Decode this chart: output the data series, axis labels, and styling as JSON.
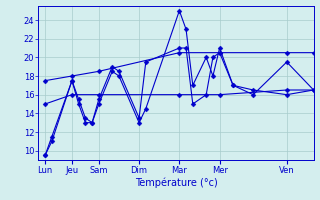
{
  "background_color": "#d4eeee",
  "grid_color": "#a8cccc",
  "line_color": "#0000cc",
  "marker": "D",
  "marker_size": 2.5,
  "xlabel": "Température (°c)",
  "ylim": [
    9,
    25.5
  ],
  "yticks": [
    10,
    12,
    14,
    16,
    18,
    20,
    22,
    24
  ],
  "day_labels": [
    "Lun",
    "Jeu",
    "Sam",
    "Dim",
    "Mar",
    "Mer",
    "Ven"
  ],
  "day_positions": [
    0,
    20,
    40,
    70,
    100,
    130,
    180
  ],
  "xlim": [
    -5,
    200
  ],
  "series": [
    {
      "x": [
        0,
        5,
        20,
        25,
        30,
        35,
        40,
        50,
        55,
        70,
        75,
        100,
        105,
        110,
        120,
        125,
        130,
        140,
        155,
        180,
        200
      ],
      "y": [
        9.5,
        11,
        17.5,
        15,
        13,
        13,
        15,
        18.5,
        18,
        13,
        14.5,
        25,
        23,
        17,
        20,
        18,
        21,
        17,
        16,
        19.5,
        16.5
      ]
    },
    {
      "x": [
        0,
        5,
        20,
        25,
        30,
        35,
        40,
        50,
        55,
        70,
        75,
        100,
        105,
        110,
        120,
        125,
        130,
        140,
        155,
        180,
        200
      ],
      "y": [
        9.5,
        11.5,
        17.5,
        15.5,
        13.5,
        13,
        15.5,
        19,
        18.5,
        13.5,
        19.5,
        21,
        21,
        15,
        16,
        20,
        20.5,
        17,
        16.5,
        16,
        16.5
      ]
    },
    {
      "x": [
        0,
        20,
        40,
        100,
        130,
        180,
        200
      ],
      "y": [
        17.5,
        18,
        18.5,
        20.5,
        20.5,
        20.5,
        20.5
      ]
    },
    {
      "x": [
        0,
        20,
        40,
        100,
        130,
        180,
        200
      ],
      "y": [
        15,
        16,
        16,
        16,
        16,
        16.5,
        16.5
      ]
    }
  ]
}
